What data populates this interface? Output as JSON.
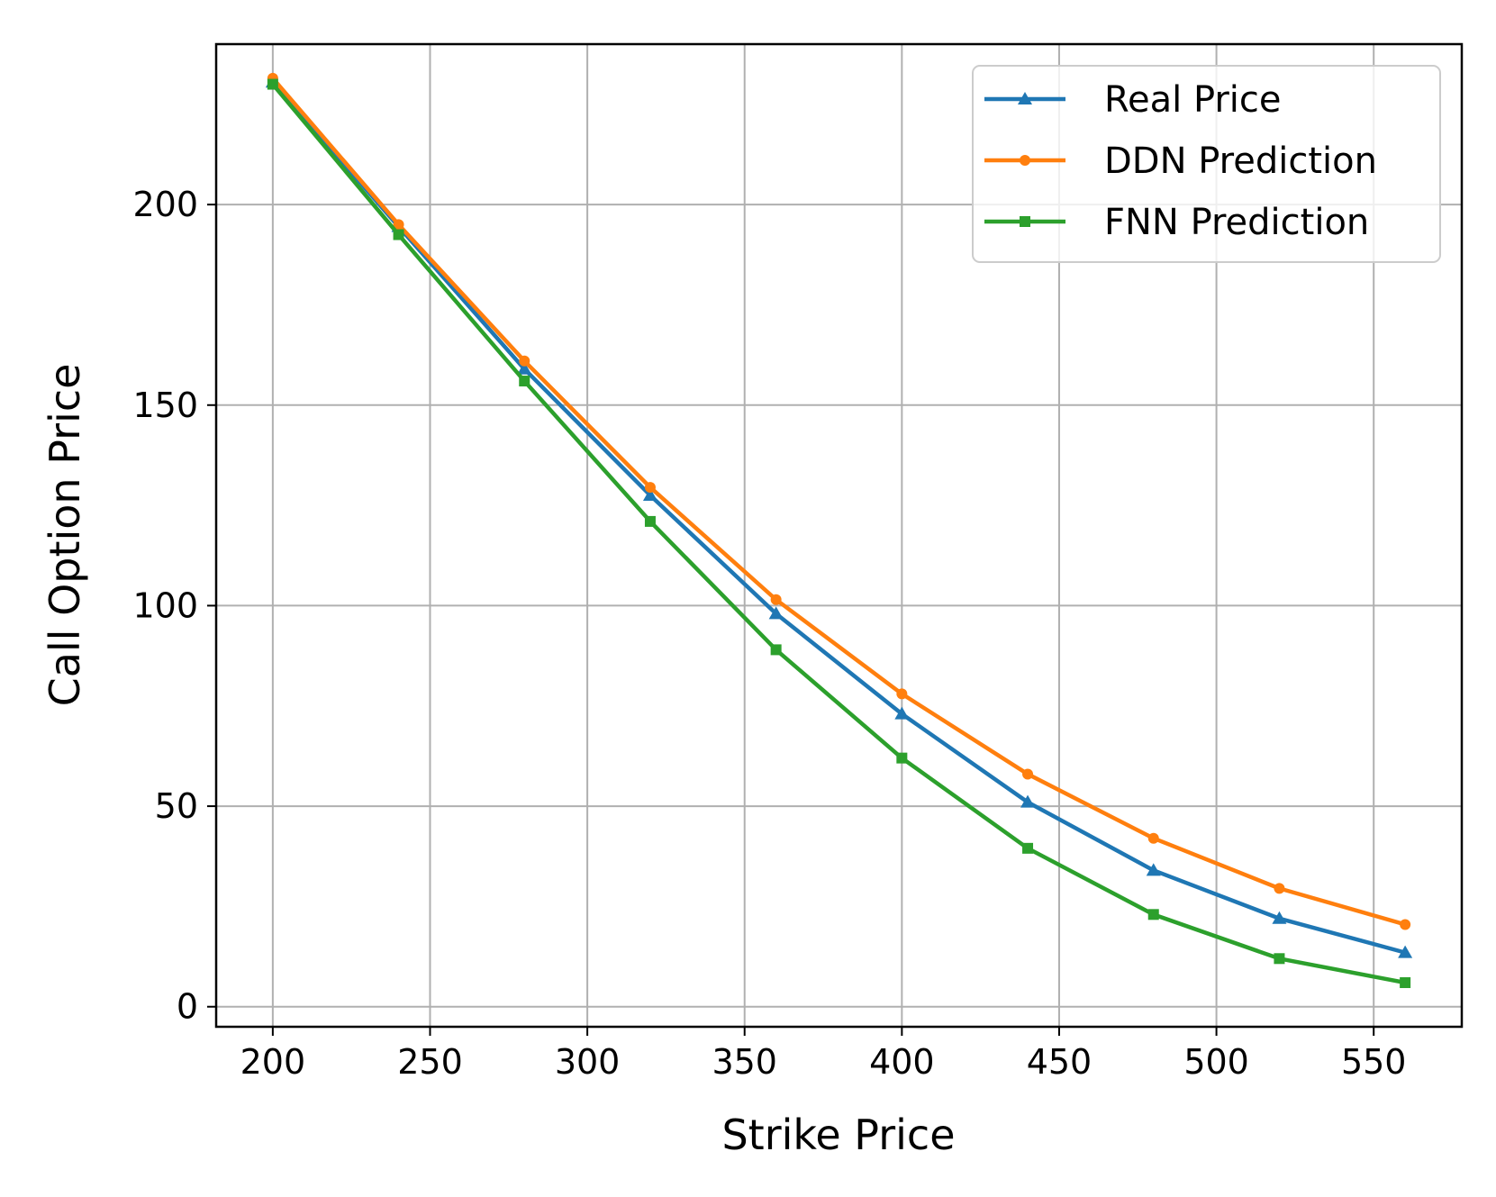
{
  "chart_data": {
    "type": "line",
    "title": "",
    "xlabel": "Strike Price",
    "ylabel": "Call Option Price",
    "xlim": [
      182,
      578
    ],
    "ylim": [
      -5,
      240
    ],
    "xticks": [
      200,
      250,
      300,
      350,
      400,
      450,
      500,
      550
    ],
    "yticks": [
      0,
      50,
      100,
      150,
      200
    ],
    "grid": true,
    "legend_position": "top-right",
    "x": [
      200,
      240,
      280,
      320,
      360,
      400,
      440,
      480,
      520,
      560
    ],
    "series": [
      {
        "name": "Real Price",
        "color": "#1f77b4",
        "marker": "triangle",
        "values": [
          230.5,
          194.5,
          159.0,
          127.5,
          98.0,
          73.0,
          51.0,
          34.0,
          22.0,
          13.5
        ]
      },
      {
        "name": "DDN Prediction",
        "color": "#ff7f0e",
        "marker": "circle",
        "values": [
          231.5,
          195.0,
          161.0,
          129.5,
          101.5,
          78.0,
          58.0,
          42.0,
          29.5,
          20.5
        ]
      },
      {
        "name": "FNN Prediction",
        "color": "#2ca02c",
        "marker": "square",
        "values": [
          230.0,
          192.5,
          156.0,
          121.0,
          89.0,
          62.0,
          39.5,
          23.0,
          12.0,
          6.0
        ]
      }
    ]
  }
}
